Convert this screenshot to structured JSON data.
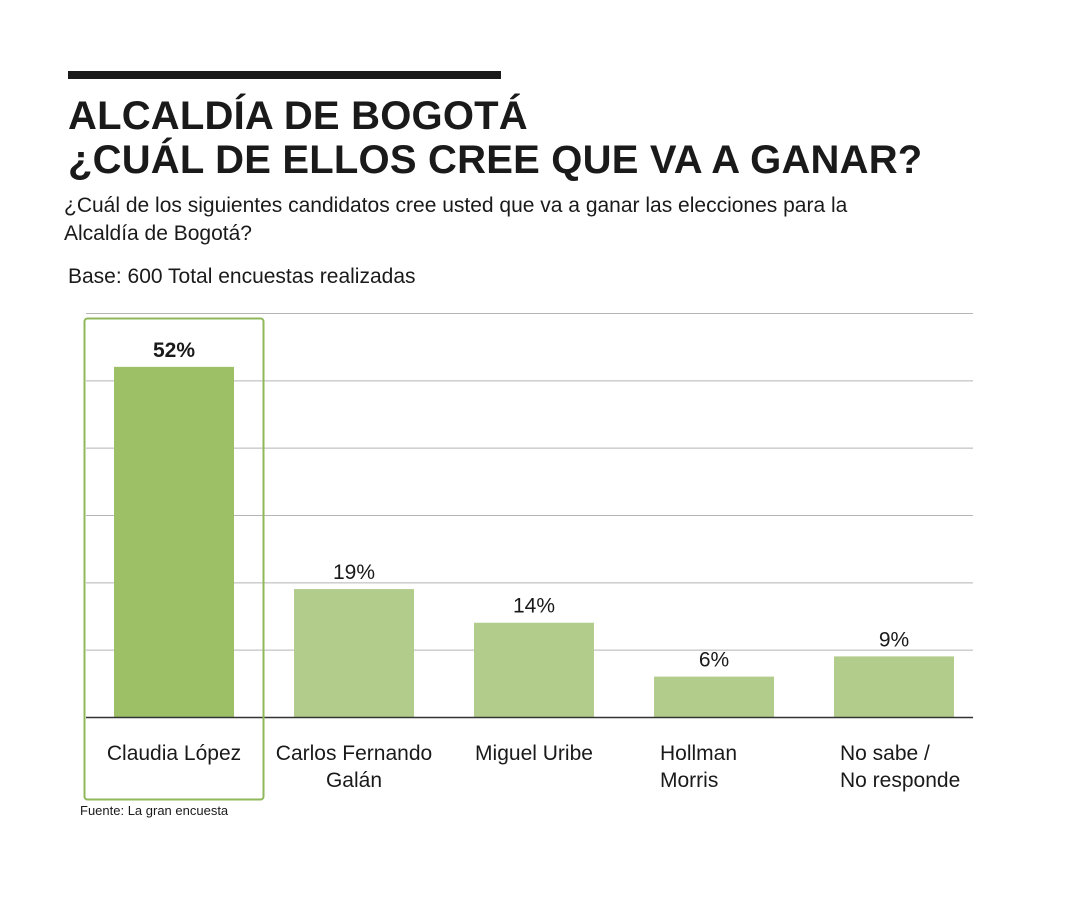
{
  "header": {
    "title_line1": "ALCALDÍA DE BOGOTÁ",
    "title_line2": "¿CUÁL DE ELLOS CREE QUE VA A GANAR?",
    "subtitle": "¿Cuál de los siguientes candidatos cree usted que va a ganar las elecciones para la Alcaldía de Bogotá?",
    "base": "Base: 600 Total encuestas realizadas"
  },
  "footer": {
    "source": "Fuente: La gran encuesta"
  },
  "colors": {
    "highlight_bar": "#9dbf66",
    "bar": "#b2cc8c",
    "grid": "#b5b5b5",
    "axis": "#333333",
    "highlight_box": "#8fb85a"
  },
  "chart_data": {
    "type": "bar",
    "title": "ALCALDÍA DE BOGOTÁ ¿CUÁL DE ELLOS CREE QUE VA A GANAR?",
    "categories": [
      [
        "Claudia López"
      ],
      [
        "Carlos Fernando",
        "Galán"
      ],
      [
        "Miguel Uribe"
      ],
      [
        "Hollman",
        "Morris"
      ],
      [
        "No sabe /",
        "No responde"
      ]
    ],
    "values": [
      52,
      19,
      14,
      6,
      9
    ],
    "value_labels": [
      "52%",
      "19%",
      "14%",
      "6%",
      "9%"
    ],
    "highlighted_index": 0,
    "ylim": [
      0,
      60
    ],
    "grid_step": 10,
    "xlabel": "",
    "ylabel": ""
  }
}
